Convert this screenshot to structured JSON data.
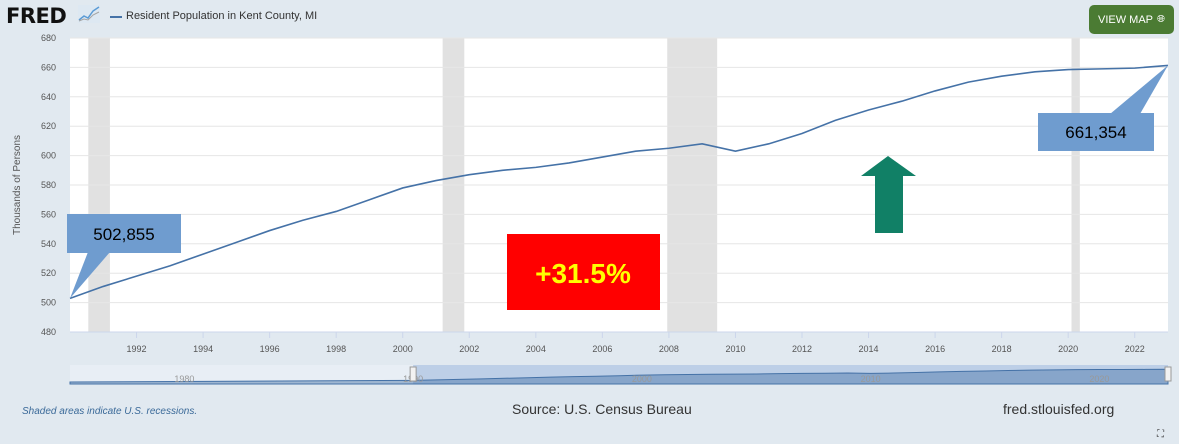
{
  "header": {
    "logo": "FRED",
    "series_label": "Resident Population in Kent County, MI",
    "view_map_label": "VIEW MAP",
    "view_map_icon": "globe-icon"
  },
  "chart_data": {
    "type": "line",
    "ylabel": "Thousands of Persons",
    "ylim": [
      480,
      680
    ],
    "yticks": [
      480,
      500,
      520,
      540,
      560,
      580,
      600,
      620,
      640,
      660,
      680
    ],
    "xlim": [
      1990,
      2023
    ],
    "xticks": [
      1992,
      1994,
      1996,
      1998,
      2000,
      2002,
      2004,
      2006,
      2008,
      2010,
      2012,
      2014,
      2016,
      2018,
      2020,
      2022
    ],
    "series": [
      {
        "name": "Resident Population in Kent County, MI",
        "color": "#4572a7",
        "x": [
          1990,
          1991,
          1992,
          1993,
          1994,
          1995,
          1996,
          1997,
          1998,
          1999,
          2000,
          2001,
          2002,
          2003,
          2004,
          2005,
          2006,
          2007,
          2008,
          2009,
          2010,
          2011,
          2012,
          2013,
          2014,
          2015,
          2016,
          2017,
          2018,
          2019,
          2020,
          2021,
          2022,
          2023
        ],
        "values": [
          502.855,
          511,
          518,
          525,
          533,
          541,
          549,
          556,
          562,
          570,
          578,
          583,
          587,
          590,
          592,
          595,
          599,
          603,
          605,
          608,
          603,
          608,
          615,
          624,
          631,
          637,
          644,
          650,
          654,
          657,
          658.5,
          659,
          659.5,
          661.354
        ]
      }
    ],
    "recessions": [
      [
        1990.55,
        1991.2
      ],
      [
        2001.2,
        2001.85
      ],
      [
        2007.95,
        2009.45
      ],
      [
        2020.1,
        2020.35
      ]
    ],
    "navigator_ticks": [
      "1980",
      "1990",
      "2000",
      "2010",
      "2020"
    ],
    "annotations": [
      {
        "label": "502,855"
      },
      {
        "label": "661,354"
      },
      {
        "label": "+31.5%",
        "bg": "#ff0000",
        "color": "#ffff00"
      }
    ],
    "arrow_color": "#118066",
    "callout_color": "#6f9ccf"
  },
  "footer": {
    "note": "Shaded areas indicate U.S. recessions.",
    "source": "Source: U.S. Census Bureau",
    "site": "fred.stlouisfed.org"
  }
}
